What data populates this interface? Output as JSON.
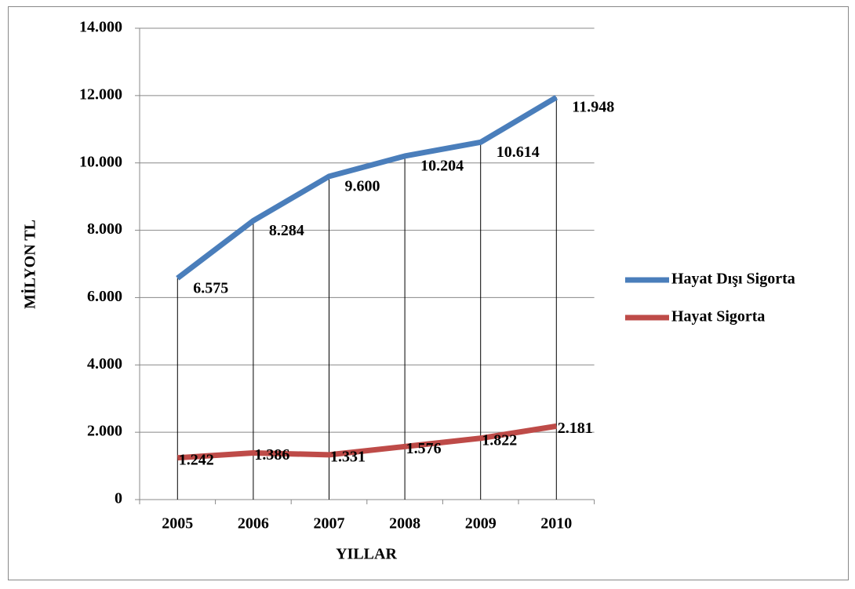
{
  "chart_data": {
    "type": "line",
    "categories": [
      "2005",
      "2006",
      "2007",
      "2008",
      "2009",
      "2010"
    ],
    "series": [
      {
        "name": "Hayat Dışı Sigorta",
        "color": "#4a7ebb",
        "values": [
          6575,
          8284,
          9600,
          10204,
          10614,
          11948
        ],
        "value_labels": [
          "6.575",
          "8.284",
          "9.600",
          "10.204",
          "10.614",
          "11.948"
        ]
      },
      {
        "name": "Hayat Sigorta",
        "color": "#be4b48",
        "values": [
          1242,
          1386,
          1331,
          1576,
          1822,
          2181
        ],
        "value_labels": [
          "1.242",
          "1.386",
          "1.331",
          "1.576",
          "1.822",
          "2.181"
        ]
      }
    ],
    "x_label": "YILLAR",
    "y_label": "MİLYON TL",
    "ylim": [
      0,
      14000
    ],
    "yticks": [
      0,
      {
        "value": 2000,
        "label": "2.000"
      },
      {
        "value": 4000,
        "label": "4.000"
      },
      {
        "value": 6000,
        "label": "6.000"
      },
      {
        "value": 8000,
        "label": "8.000"
      },
      {
        "value": 10000,
        "label": "10.000"
      },
      {
        "value": 12000,
        "label": "12.000"
      },
      {
        "value": 14000,
        "label": "14.000"
      }
    ],
    "grid": true,
    "legend": "right"
  }
}
